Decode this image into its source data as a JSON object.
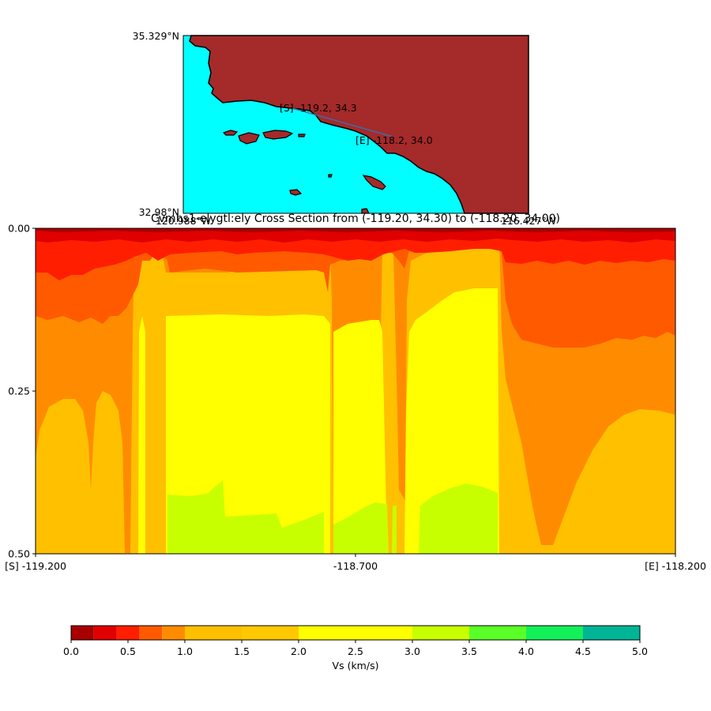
{
  "map": {
    "lat_top": "35.329°N",
    "lat_bottom": "32.98°N",
    "lon_left": "120.988°W",
    "lon_right": "116.427°W",
    "start_label": "[S] -119.2, 34.3",
    "end_label": "[E] -118.2, 34.0",
    "land_color": "#a52a2a",
    "water_color": "#00ffff",
    "line_color": "#3a6ea5"
  },
  "chart_data": {
    "type": "heatmap",
    "title": "Cvmhs1-elygtl:ely Cross Section from (-119.20, 34.30) to (-118.20, 34.00)",
    "x_tick_labels": [
      "[S] -119.200",
      "-118.700",
      "[E] -118.200"
    ],
    "y_tick_labels": [
      "0.00",
      "0.25",
      "0.50"
    ],
    "x_range": [
      -119.2,
      -118.2
    ],
    "y_range": [
      0.0,
      0.5
    ],
    "colorbar": {
      "label": "Vs (km/s)",
      "tick_labels": [
        "0.0",
        "0.5",
        "1.0",
        "1.5",
        "2.0",
        "2.5",
        "3.0",
        "3.5",
        "4.0",
        "4.5",
        "5.0"
      ],
      "boundaries": [
        0.0,
        0.2,
        0.4,
        0.6,
        0.8,
        1.0,
        1.5,
        2.0,
        2.5,
        3.0,
        3.5,
        4.0,
        4.5,
        5.0
      ],
      "colors": [
        "#a80000",
        "#e00000",
        "#ff1e00",
        "#ff5a00",
        "#ff8c00",
        "#ffc000",
        "#ffc800",
        "#ffff00",
        "#ffff00",
        "#c8ff00",
        "#5aff28",
        "#14f05a",
        "#00b496",
        "#0050ff"
      ]
    }
  }
}
